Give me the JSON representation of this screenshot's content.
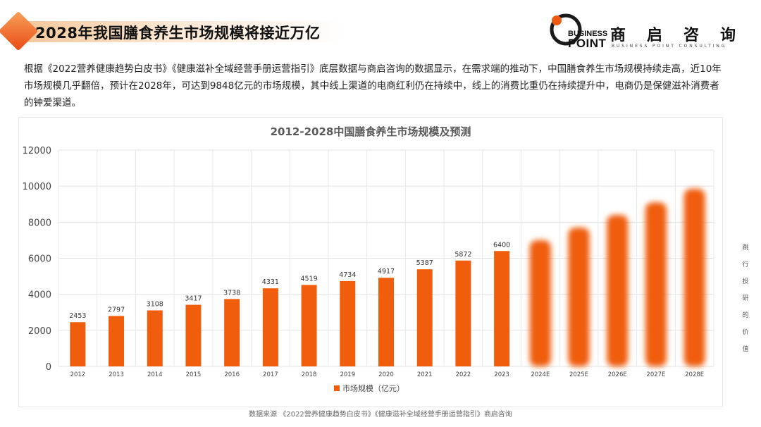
{
  "header": {
    "title": "2028年我国膳食养生市场规模将接近万亿"
  },
  "logo": {
    "en_line1": "BUSINESS",
    "en_line2": "POINT",
    "cn_name": "商启咨询",
    "subtitle": "BUSINESS POINT CONSULTING"
  },
  "intro": {
    "text": "根据《2022营养健康趋势白皮书》《健康滋补全域经营手册运营指引》底层数据与商启咨询的数据显示，在需求端的推动下，中国膳食养生市场规模持续走高，近10年市场规模几乎翻倍，预计在2028年，可达到9848亿元的市场规模，其中线上渠道的电商红利仍在持续中，线上的消费比重仍在持续提升中，电商仍是保健滋补消费者的钟爱渠道。"
  },
  "side_text": "跳行投研的价值",
  "source": {
    "text": "数据来源 《2022营养健康趋势白皮书》《健康滋补全域经营手册运营指引》商启咨询"
  },
  "colors": {
    "bar": "#ef5d0d",
    "accent": "#ea4a14"
  },
  "chart_data": {
    "type": "bar",
    "title": "2012-2028中国膳食养生市场规模及预测",
    "categories": [
      "2012",
      "2013",
      "2014",
      "2015",
      "2016",
      "2017",
      "2018",
      "2019",
      "2020",
      "2021",
      "2022",
      "2023",
      "2024E",
      "2025E",
      "2026E",
      "2027E",
      "2028E"
    ],
    "series": [
      {
        "name": "市场规模（亿元）",
        "values": [
          2453,
          2797,
          3108,
          3417,
          3738,
          4331,
          4519,
          4734,
          4917,
          5387,
          5872,
          6400,
          7000,
          7700,
          8400,
          9100,
          9848
        ]
      }
    ],
    "data_labels": [
      "2453",
      "2797",
      "3108",
      "3417",
      "3738",
      "4331",
      "4519",
      "4734",
      "4917",
      "5387",
      "5872",
      "6400",
      "",
      "",
      "",
      "",
      ""
    ],
    "blurred_from_index": 12,
    "yticks": [
      0,
      2000,
      4000,
      6000,
      8000,
      10000,
      12000
    ],
    "ylim": [
      0,
      12000
    ],
    "xlabel": "",
    "ylabel": "",
    "legend_position": "bottom",
    "grid": true
  }
}
